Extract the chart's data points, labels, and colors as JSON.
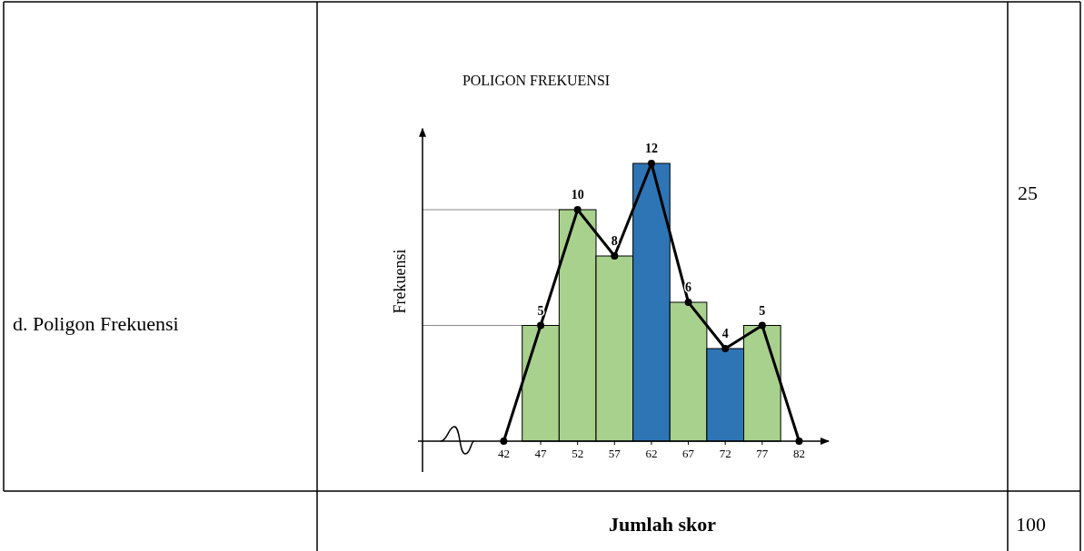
{
  "chart_data": {
    "type": "bar",
    "title": "POLIGON   FREKUENSI",
    "ylabel": "Frekuensi",
    "xlim": [
      31,
      86
    ],
    "xticks": [
      42,
      47,
      52,
      57,
      62,
      67,
      72,
      77,
      82
    ],
    "ylim": [
      0,
      13.5
    ],
    "series": [
      {
        "x": [
          47,
          52,
          57,
          62,
          67,
          72,
          77
        ],
        "values": [
          5,
          10,
          8,
          12,
          6,
          4,
          5
        ],
        "colors": [
          "#a9d18e",
          "#a9d18e",
          "#a9d18e",
          "#2e75b6",
          "#a9d18e",
          "#2e75b6",
          "#a9d18e"
        ]
      },
      {
        "type": "line",
        "x": [
          42,
          47,
          52,
          57,
          62,
          67,
          72,
          77,
          82
        ],
        "values": [
          0,
          5,
          10,
          8,
          12,
          6,
          4,
          5,
          0
        ],
        "color": "#000000",
        "value_labels": [
          null,
          "5",
          "10",
          "8",
          "12",
          "6",
          "4",
          "5",
          null
        ]
      }
    ],
    "marker": "circle",
    "ref_lines": [
      {
        "axis": "y",
        "value": 10
      },
      {
        "axis": "y",
        "value": 5
      }
    ],
    "annotations": [
      "d.  Poligon Frekuensi",
      "25",
      "Jumlah skor",
      "100"
    ]
  }
}
